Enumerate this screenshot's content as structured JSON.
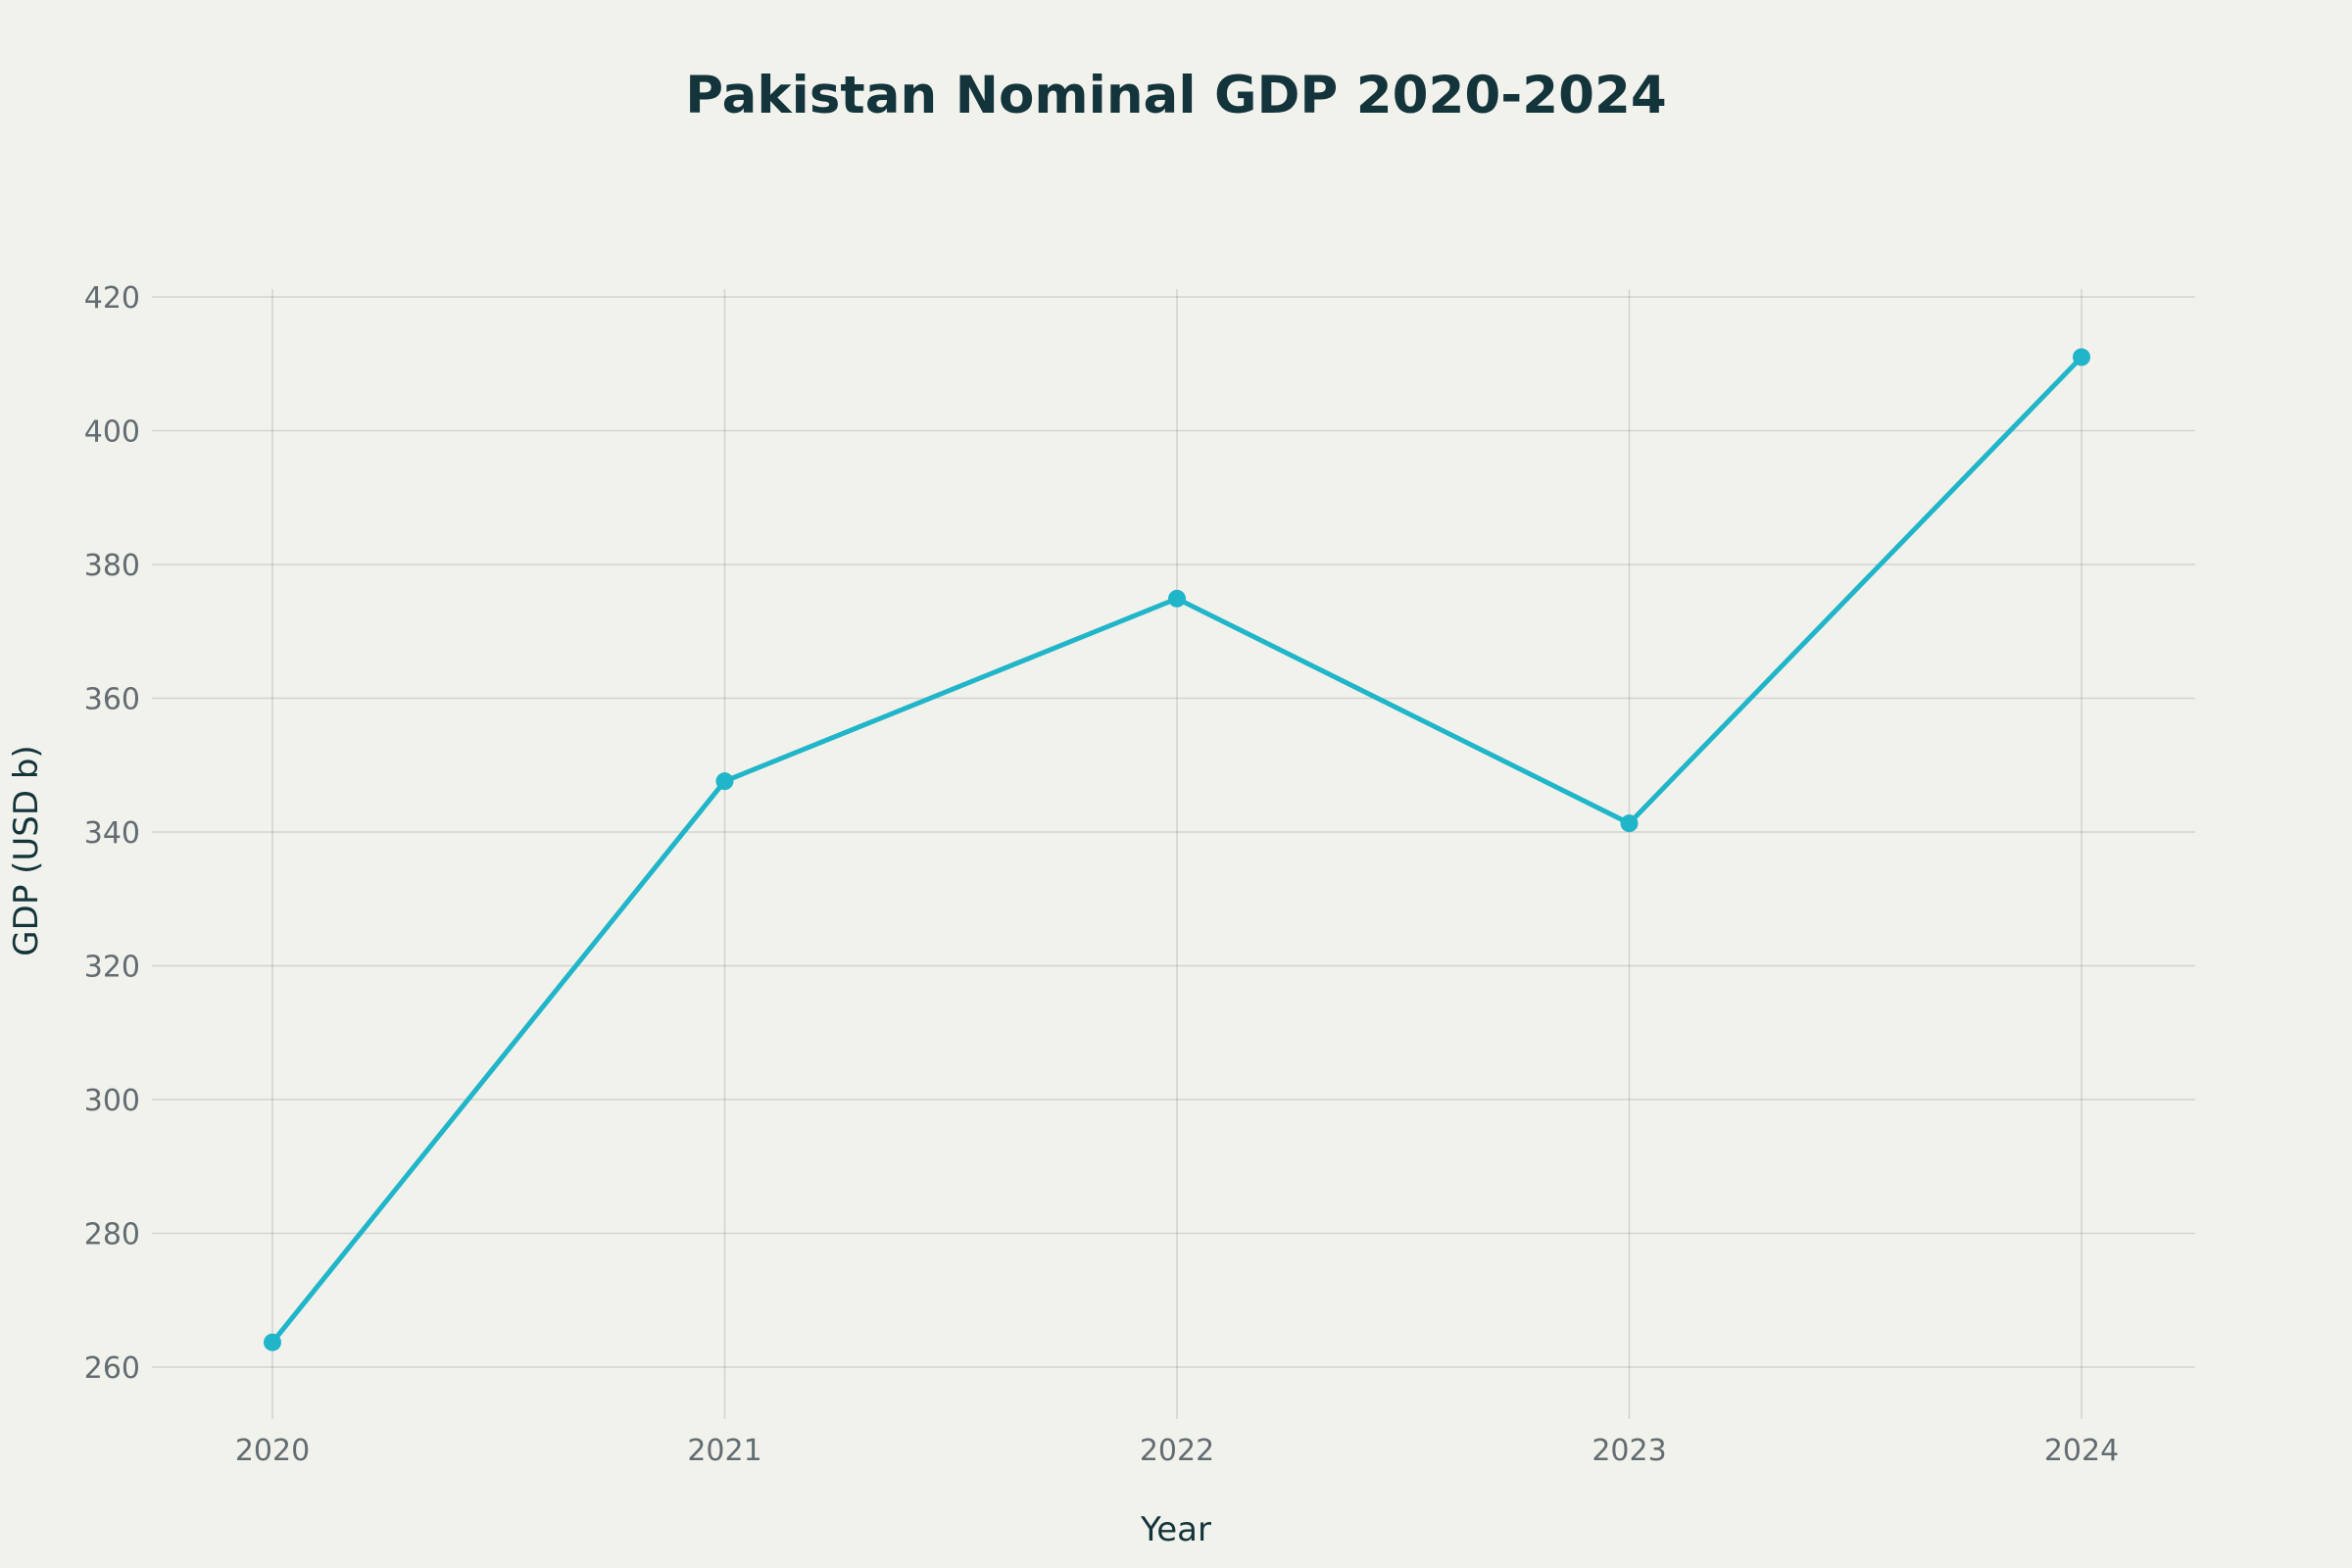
{
  "chart_data": {
    "type": "line",
    "title": "Pakistan Nominal GDP 2020-2024",
    "xlabel": "Year",
    "ylabel": "GDP (USD b)",
    "categories": [
      "2020",
      "2021",
      "2022",
      "2023",
      "2024"
    ],
    "series": [
      {
        "values": [
          263.7,
          347.6,
          374.9,
          341.3,
          411.0
        ]
      }
    ],
    "yticks": [
      260,
      280,
      300,
      320,
      340,
      360,
      380,
      400,
      420
    ],
    "ylim": [
      252,
      421
    ],
    "grid": true,
    "legend": "none",
    "line_color": "#21b5c9",
    "background_color": "#f2f2ed",
    "title_color": "#13343b"
  }
}
